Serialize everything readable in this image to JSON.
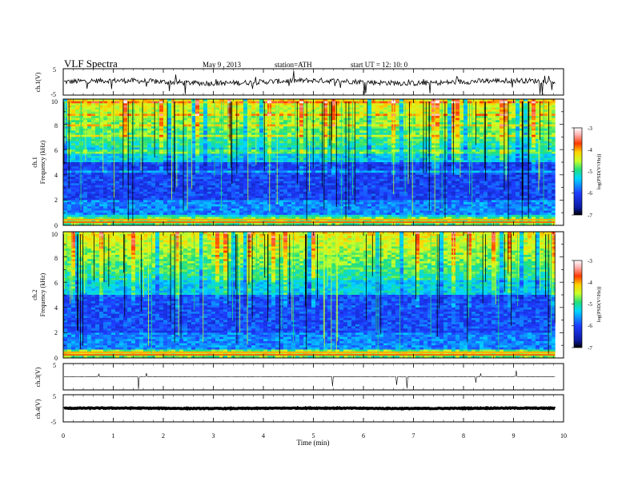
{
  "header": {
    "title": "VLF  Spectra",
    "date": "May 9  , 2013",
    "station": "station=ATH",
    "start": "start  UT  =    12: 10: 0"
  },
  "chart_data": [
    {
      "type": "line",
      "panel": "ch1",
      "ylabel": "ch.1(V)",
      "ylim": [
        -5,
        5
      ],
      "yticks": [
        "5",
        "-5"
      ],
      "baseline": 0,
      "description_series": "waveform"
    },
    {
      "type": "heatmap",
      "panel": "spec1",
      "ylabel_top": "ch.1",
      "ylabel": "Frequency  (kHz)",
      "ylim": [
        0,
        10
      ],
      "yticks": [
        "10",
        "8",
        "6",
        "4",
        "2",
        "0"
      ],
      "colorbar": {
        "label": "log(PSD(V²/Hz))",
        "range": [
          -7,
          -3
        ],
        "ticks": [
          "-3",
          "-4",
          "-5",
          "-6",
          "-7"
        ]
      }
    },
    {
      "type": "heatmap",
      "panel": "spec2",
      "ylabel_top": "ch.2",
      "ylabel": "Frequency  (kHz)",
      "ylim": [
        0,
        10
      ],
      "yticks": [
        "10",
        "8",
        "6",
        "4",
        "2",
        "0"
      ],
      "colorbar": {
        "label": "log(PSD(V²/Hz))",
        "range": [
          -7,
          -3
        ],
        "ticks": [
          "-3",
          "-4",
          "-5",
          "-6",
          "-7"
        ]
      }
    },
    {
      "type": "line",
      "panel": "ch3",
      "ylabel": "ch.3(V)",
      "ylim": [
        -5,
        5
      ],
      "yticks": [
        "5"
      ],
      "baseline": 0
    },
    {
      "type": "line",
      "panel": "ch4",
      "ylabel": "ch.4(V)",
      "ylim": [
        -5,
        5
      ],
      "yticks": [
        "5",
        "-5"
      ],
      "baseline": 0
    }
  ],
  "xaxis": {
    "label": "Time  (min)",
    "range": [
      0,
      10
    ],
    "data_end": 9.83,
    "ticks": [
      "0",
      "1",
      "2",
      "3",
      "4",
      "5",
      "6",
      "7",
      "8",
      "9",
      "10"
    ]
  },
  "colors": {
    "colormap": [
      "#000000",
      "#0b1a9e",
      "#1e3cff",
      "#00d8ff",
      "#22e07a",
      "#c8ff2a",
      "#ffd400",
      "#ff3a00",
      "#ffb0b0",
      "#ffffff"
    ]
  }
}
